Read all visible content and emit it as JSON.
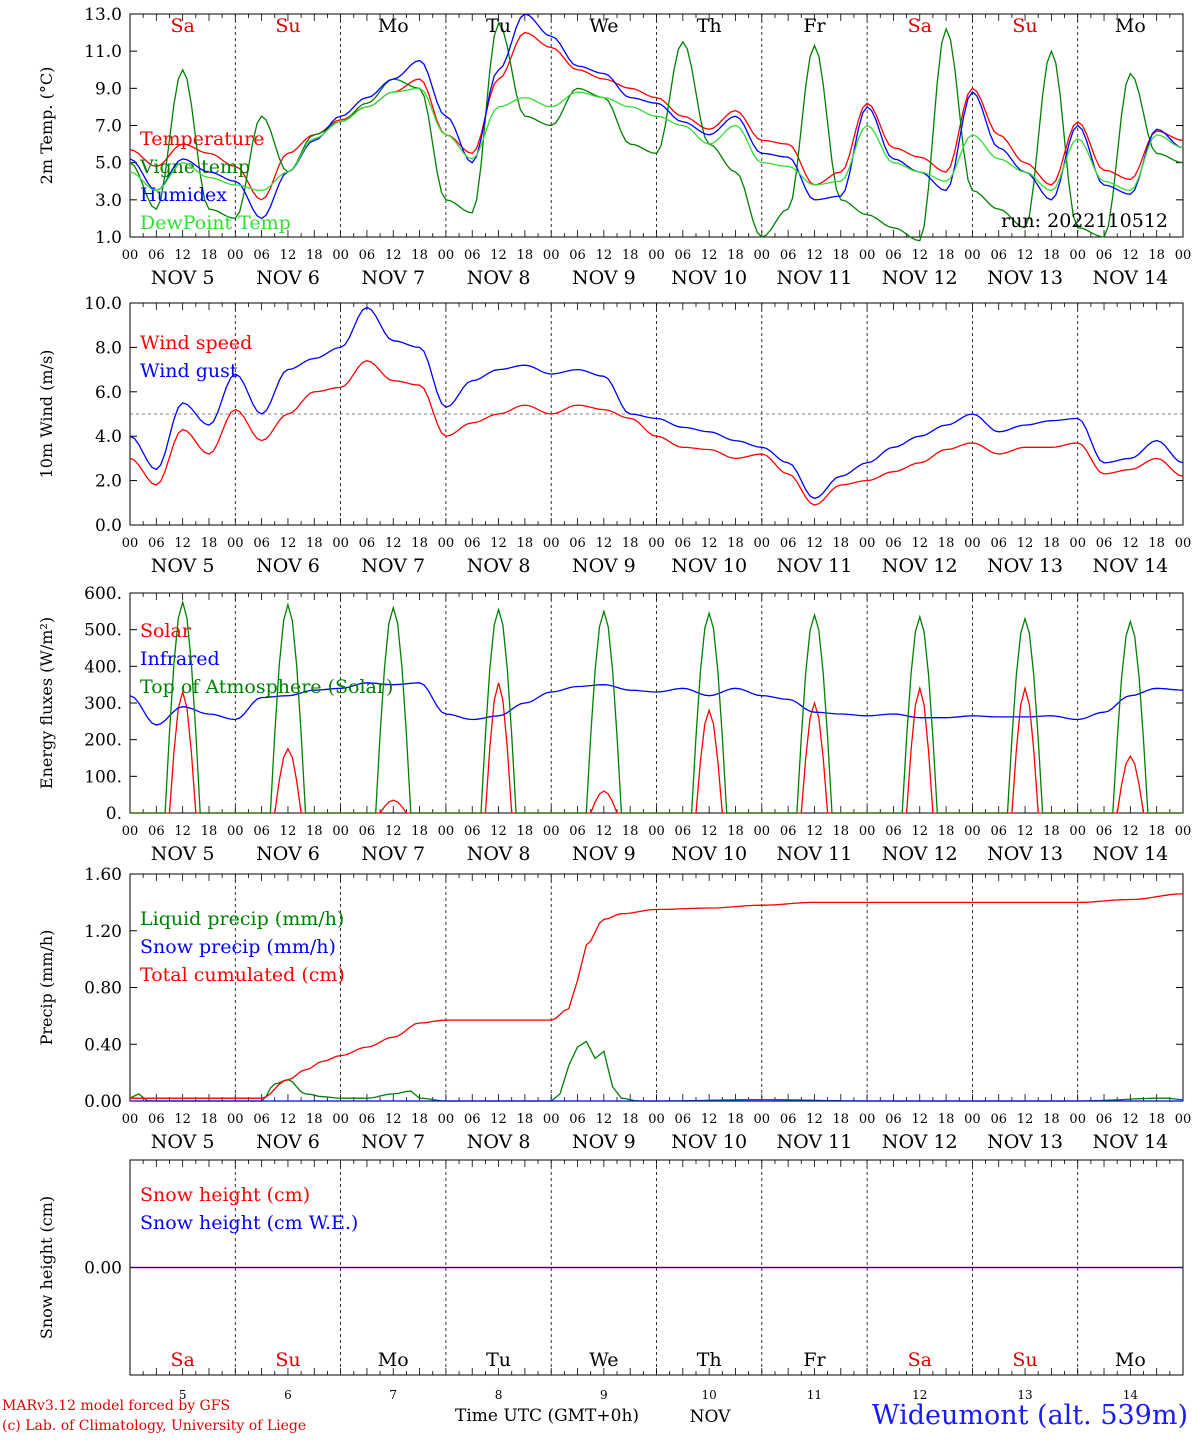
{
  "run_label": "run: 2022110512",
  "day_abbrev": [
    "Sa",
    "Su",
    "Mo",
    "Tu",
    "We",
    "Th",
    "Fr",
    "Sa",
    "Su",
    "Mo"
  ],
  "day_colors": [
    "#e00000",
    "#e00000",
    "#000000",
    "#000000",
    "#000000",
    "#000000",
    "#000000",
    "#e00000",
    "#e00000",
    "#000000"
  ],
  "date_labels": [
    "NOV  5",
    "NOV  6",
    "NOV  7",
    "NOV  8",
    "NOV  9",
    "NOV 10",
    "NOV 11",
    "NOV 12",
    "NOV 13",
    "NOV 14"
  ],
  "hour_ticks": [
    "00",
    "06",
    "12",
    "18"
  ],
  "last_hour_tick": "00",
  "bottom_day_numbers": [
    "5",
    "6",
    "7",
    "8",
    "9",
    "10",
    "11",
    "12",
    "13",
    "14"
  ],
  "bottom_month": "NOV",
  "x_axis_title": "Time UTC (GMT+0h)",
  "credit_line_1": "MARv3.12 model forced by GFS",
  "credit_line_2": "(c) Lab. of Climatology, University of Liege",
  "station": "Wideumont (alt. 539m)",
  "chart_data": [
    {
      "type": "line",
      "ylabel": "2m Temp. (°C)",
      "ylim": [
        1.0,
        13.0
      ],
      "yticks": [
        "13.0",
        "11.0",
        "9.0",
        "7.0",
        "5.0",
        "3.0",
        "1.0"
      ],
      "x_unit": "hours since NOV 5 00 UTC",
      "series": [
        {
          "name": "Temperature",
          "color": "#ff0000",
          "x": [
            0,
            6,
            12,
            18,
            24,
            30,
            36,
            42,
            48,
            54,
            60,
            66,
            72,
            78,
            84,
            90,
            96,
            102,
            108,
            114,
            120,
            126,
            132,
            138,
            144,
            150,
            156,
            162,
            168,
            174,
            180,
            186,
            192,
            198,
            204,
            210,
            216,
            222,
            228,
            234,
            240
          ],
          "y": [
            5.7,
            4.8,
            6.0,
            5.5,
            4.8,
            3.0,
            5.5,
            6.5,
            7.3,
            8.0,
            8.8,
            9.5,
            6.5,
            5.5,
            9.5,
            12.0,
            11.2,
            10.0,
            9.5,
            9.0,
            8.5,
            7.5,
            6.8,
            7.8,
            6.2,
            6.0,
            3.8,
            4.5,
            8.2,
            5.8,
            5.3,
            4.5,
            9.0,
            6.5,
            5.0,
            3.8,
            7.2,
            4.6,
            4.1,
            6.7,
            6.2
          ]
        },
        {
          "name": "Vigne temp",
          "color": "#008000",
          "x": [
            0,
            6,
            12,
            18,
            24,
            30,
            36,
            42,
            48,
            54,
            60,
            66,
            72,
            78,
            84,
            90,
            96,
            102,
            108,
            114,
            120,
            126,
            132,
            138,
            144,
            150,
            156,
            162,
            168,
            174,
            180,
            186,
            192,
            198,
            204,
            210,
            216,
            222,
            228,
            234,
            240
          ],
          "y": [
            5.0,
            2.5,
            10.0,
            2.5,
            2.0,
            7.5,
            4.5,
            6.5,
            7.2,
            8.2,
            9.5,
            9.0,
            3.0,
            2.3,
            12.5,
            7.5,
            7.0,
            9.0,
            8.5,
            6.0,
            5.5,
            11.5,
            6.0,
            4.5,
            1.0,
            2.5,
            11.3,
            3.0,
            2.2,
            1.5,
            0.8,
            12.2,
            3.5,
            2.5,
            1.5,
            11.0,
            1.5,
            1.0,
            9.8,
            5.5,
            5.0
          ]
        },
        {
          "name": "Humidex",
          "color": "#0000ff",
          "x": [
            0,
            6,
            12,
            18,
            24,
            30,
            36,
            42,
            48,
            54,
            60,
            66,
            72,
            78,
            84,
            90,
            96,
            102,
            108,
            114,
            120,
            126,
            132,
            138,
            144,
            150,
            156,
            162,
            168,
            174,
            180,
            186,
            192,
            198,
            204,
            210,
            216,
            222,
            228,
            234,
            240
          ],
          "y": [
            5.2,
            3.5,
            5.2,
            4.5,
            4.0,
            2.0,
            4.5,
            6.2,
            7.5,
            8.5,
            9.5,
            10.5,
            7.5,
            5.0,
            10.0,
            13.0,
            11.8,
            10.2,
            9.8,
            8.5,
            8.2,
            7.2,
            6.5,
            7.5,
            5.5,
            5.3,
            3.0,
            3.2,
            8.0,
            5.2,
            4.5,
            3.5,
            8.8,
            5.8,
            4.5,
            3.0,
            7.0,
            3.8,
            3.3,
            6.8,
            5.8
          ]
        },
        {
          "name": "DewPoint Temp",
          "color": "#33dd33",
          "x": [
            0,
            6,
            12,
            18,
            24,
            30,
            36,
            42,
            48,
            54,
            60,
            66,
            72,
            78,
            84,
            90,
            96,
            102,
            108,
            114,
            120,
            126,
            132,
            138,
            144,
            150,
            156,
            162,
            168,
            174,
            180,
            186,
            192,
            198,
            204,
            210,
            216,
            222,
            228,
            234,
            240
          ],
          "y": [
            4.5,
            3.5,
            5.0,
            4.2,
            3.8,
            3.5,
            4.5,
            6.3,
            7.2,
            8.0,
            8.8,
            9.0,
            6.5,
            5.2,
            8.0,
            8.5,
            8.0,
            8.8,
            8.5,
            8.0,
            7.5,
            7.0,
            6.0,
            7.0,
            5.0,
            4.8,
            3.8,
            4.0,
            7.0,
            5.0,
            4.5,
            4.0,
            6.5,
            5.2,
            4.5,
            3.5,
            6.3,
            4.0,
            3.5,
            6.5,
            5.8
          ]
        }
      ]
    },
    {
      "type": "line",
      "ylabel": "10m Wind (m/s)",
      "ylim": [
        0.0,
        10.0
      ],
      "yticks": [
        "10.0",
        "8.0",
        "6.0",
        "4.0",
        "2.0",
        "0.0"
      ],
      "reference_line": 5.0,
      "x_unit": "hours since NOV 5 00 UTC",
      "series": [
        {
          "name": "Wind speed",
          "color": "#ff0000",
          "x": [
            0,
            6,
            12,
            18,
            24,
            30,
            36,
            42,
            48,
            54,
            60,
            66,
            72,
            78,
            84,
            90,
            96,
            102,
            108,
            114,
            120,
            126,
            132,
            138,
            144,
            150,
            156,
            162,
            168,
            174,
            180,
            186,
            192,
            198,
            204,
            210,
            216,
            222,
            228,
            234,
            240
          ],
          "y": [
            3.0,
            1.8,
            4.3,
            3.2,
            5.2,
            3.8,
            5.0,
            6.0,
            6.2,
            7.4,
            6.5,
            6.3,
            4.0,
            4.6,
            5.0,
            5.4,
            5.0,
            5.4,
            5.2,
            4.8,
            4.0,
            3.5,
            3.4,
            3.0,
            3.2,
            2.3,
            0.9,
            1.8,
            2.0,
            2.4,
            2.8,
            3.4,
            3.7,
            3.2,
            3.5,
            3.5,
            3.7,
            2.3,
            2.5,
            3.0,
            2.2
          ]
        },
        {
          "name": "Wind gust",
          "color": "#0000ff",
          "x": [
            0,
            6,
            12,
            18,
            24,
            30,
            36,
            42,
            48,
            54,
            60,
            66,
            72,
            78,
            84,
            90,
            96,
            102,
            108,
            114,
            120,
            126,
            132,
            138,
            144,
            150,
            156,
            162,
            168,
            174,
            180,
            186,
            192,
            198,
            204,
            210,
            216,
            222,
            228,
            234,
            240
          ],
          "y": [
            4.0,
            2.5,
            5.5,
            4.5,
            6.8,
            5.0,
            7.0,
            7.5,
            8.0,
            9.8,
            8.3,
            8.0,
            5.3,
            6.5,
            7.0,
            7.2,
            6.8,
            7.0,
            6.7,
            5.0,
            4.8,
            4.4,
            4.2,
            3.8,
            3.5,
            2.8,
            1.2,
            2.2,
            2.8,
            3.5,
            4.0,
            4.5,
            5.0,
            4.2,
            4.5,
            4.7,
            4.8,
            2.8,
            3.0,
            3.8,
            2.8
          ]
        }
      ]
    },
    {
      "type": "line",
      "ylabel": "Energy fluxes (W/m²)",
      "ylim": [
        0,
        600
      ],
      "yticks": [
        "600.",
        "500.",
        "400.",
        "300.",
        "200.",
        "100.",
        "0."
      ],
      "x_unit": "hours since NOV 5 00 UTC",
      "series": [
        {
          "name": "Solar",
          "color": "#ff0000",
          "peaks": [
            330,
            175,
            35,
            355,
            60,
            280,
            300,
            340,
            340,
            155
          ]
        },
        {
          "name": "Infrared",
          "color": "#0000ff",
          "x": [
            0,
            6,
            12,
            18,
            24,
            30,
            36,
            42,
            48,
            54,
            60,
            66,
            72,
            78,
            84,
            90,
            96,
            102,
            108,
            114,
            120,
            126,
            132,
            138,
            144,
            150,
            156,
            162,
            168,
            174,
            180,
            186,
            192,
            198,
            204,
            210,
            216,
            222,
            228,
            234,
            240
          ],
          "y": [
            320,
            240,
            290,
            270,
            255,
            315,
            320,
            335,
            340,
            355,
            350,
            355,
            270,
            255,
            265,
            300,
            330,
            345,
            350,
            335,
            330,
            340,
            320,
            340,
            320,
            310,
            275,
            270,
            265,
            270,
            260,
            260,
            265,
            262,
            262,
            265,
            255,
            275,
            320,
            340,
            335
          ]
        },
        {
          "name": "Top of Atmosphere (Solar)",
          "color": "#008000",
          "peaks": [
            575,
            568,
            560,
            555,
            550,
            545,
            540,
            535,
            530,
            522
          ]
        }
      ]
    },
    {
      "type": "line",
      "ylabel": "Precip (mm/h)",
      "ylim": [
        0.0,
        1.6
      ],
      "yticks": [
        "1.60",
        "1.20",
        "0.80",
        "0.40",
        "0.00"
      ],
      "x_unit": "hours since NOV 5 00 UTC",
      "series": [
        {
          "name": "Liquid precip (mm/h)",
          "color": "#008000",
          "x": [
            0,
            2,
            4,
            30,
            33,
            36,
            40,
            44,
            48,
            54,
            60,
            64,
            66,
            72,
            84,
            96,
            98,
            100,
            102,
            104,
            106,
            108,
            110,
            112,
            116,
            120,
            144,
            168,
            192,
            216,
            236,
            240
          ],
          "y": [
            0.02,
            0.05,
            0.0,
            0.0,
            0.12,
            0.15,
            0.05,
            0.03,
            0.02,
            0.02,
            0.05,
            0.07,
            0.02,
            0.0,
            0.0,
            0.0,
            0.05,
            0.25,
            0.38,
            0.42,
            0.3,
            0.35,
            0.1,
            0.02,
            0.0,
            0.0,
            0.01,
            0.0,
            0.0,
            0.0,
            0.02,
            0.01
          ]
        },
        {
          "name": "Snow precip (mm/h)",
          "color": "#0000ff",
          "x": [
            0,
            240
          ],
          "y": [
            0,
            0
          ]
        },
        {
          "name": "Total cumulated (cm)",
          "color": "#ff0000",
          "x": [
            0,
            24,
            30,
            36,
            40,
            44,
            48,
            54,
            60,
            66,
            72,
            84,
            96,
            100,
            102,
            104,
            108,
            112,
            120,
            132,
            144,
            156,
            168,
            192,
            216,
            228,
            240
          ],
          "y": [
            0.02,
            0.02,
            0.02,
            0.15,
            0.22,
            0.28,
            0.32,
            0.38,
            0.45,
            0.55,
            0.57,
            0.57,
            0.57,
            0.65,
            0.85,
            1.1,
            1.28,
            1.32,
            1.35,
            1.36,
            1.38,
            1.4,
            1.4,
            1.4,
            1.4,
            1.42,
            1.46
          ]
        }
      ]
    },
    {
      "type": "line",
      "ylabel": "Snow height (cm)",
      "ylim": [
        -1,
        1
      ],
      "yticks": [
        "0.00"
      ],
      "x_unit": "hours since NOV 5 00 UTC",
      "series": [
        {
          "name": "Snow height (cm)",
          "color": "#ff0000",
          "x": [
            0,
            240
          ],
          "y": [
            0,
            0
          ]
        },
        {
          "name": "Snow height (cm W.E.)",
          "color": "#0000ff",
          "x": [
            0,
            240
          ],
          "y": [
            0,
            0
          ]
        }
      ]
    }
  ]
}
